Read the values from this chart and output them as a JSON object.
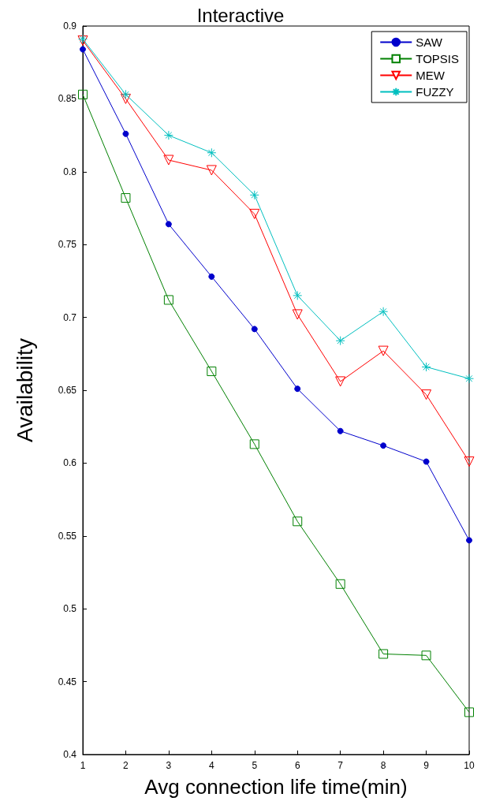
{
  "chart_data": {
    "type": "line",
    "title": "Interactive",
    "xlabel": "Avg connection life time(min)",
    "ylabel": "Availability",
    "x": [
      1,
      2,
      3,
      4,
      5,
      6,
      7,
      8,
      9,
      10
    ],
    "series": [
      {
        "name": "SAW",
        "color": "#0000cc",
        "marker": "circle",
        "values": [
          0.884,
          0.826,
          0.764,
          0.728,
          0.692,
          0.651,
          0.622,
          0.612,
          0.601,
          0.547
        ]
      },
      {
        "name": "TOPSIS",
        "color": "#008000",
        "marker": "square",
        "values": [
          0.853,
          0.782,
          0.712,
          0.663,
          0.613,
          0.56,
          0.517,
          0.469,
          0.468,
          0.429
        ]
      },
      {
        "name": "MEW",
        "color": "#ff0000",
        "marker": "triangle",
        "values": [
          0.89,
          0.85,
          0.808,
          0.801,
          0.771,
          0.702,
          0.656,
          0.677,
          0.647,
          0.601
        ]
      },
      {
        "name": "FUZZY",
        "color": "#00bfbf",
        "marker": "cross",
        "values": [
          0.891,
          0.853,
          0.825,
          0.813,
          0.784,
          0.715,
          0.684,
          0.704,
          0.666,
          0.658
        ]
      }
    ],
    "xlim": [
      1,
      10
    ],
    "xticks": [
      1,
      2,
      3,
      4,
      5,
      6,
      7,
      8,
      9,
      10
    ],
    "ylim": [
      0.4,
      0.9
    ],
    "yticks": [
      0.4,
      0.45,
      0.5,
      0.55,
      0.6,
      0.65,
      0.7,
      0.75,
      0.8,
      0.85,
      0.9
    ],
    "grid": false,
    "legend": "top right",
    "line_style": "solid"
  }
}
